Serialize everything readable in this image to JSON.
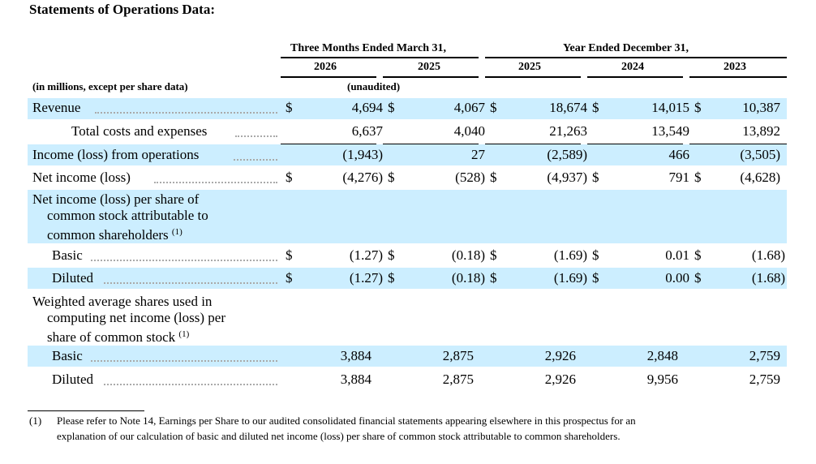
{
  "title": "Statements of Operations Data:",
  "header": {
    "group1": "Three Months Ended March 31,",
    "group2": "Year Ended December 31,",
    "years": [
      "2026",
      "2025",
      "2025",
      "2024",
      "2023"
    ],
    "units": "(in millions, except per share data)",
    "unaudited": "(unaudited)"
  },
  "currency": "$",
  "rows": [
    {
      "label": "Revenue",
      "values": [
        "4,694",
        "4,067",
        "18,674",
        "14,015",
        "10,387"
      ]
    },
    {
      "label": "Total costs and expenses",
      "values": [
        "6,637",
        "4,040",
        "21,263",
        "13,549",
        "13,892"
      ]
    },
    {
      "label": "Income (loss) from operations",
      "values": [
        "(1,943)",
        "27",
        "(2,589)",
        "466",
        "(3,505)"
      ]
    },
    {
      "label": "Net income (loss)",
      "values": [
        "(4,276)",
        "(528)",
        "(4,937)",
        "791",
        "(4,628)"
      ]
    },
    {
      "label_lines": [
        "Net income (loss) per share of",
        "common stock attributable to",
        "common shareholders"
      ],
      "note": "(1)"
    },
    {
      "label": "Basic",
      "values": [
        "(1.27)",
        "(0.18)",
        "(1.69)",
        "0.01",
        "(1.68)"
      ]
    },
    {
      "label": "Diluted",
      "values": [
        "(1.27)",
        "(0.18)",
        "(1.69)",
        "0.00",
        "(1.68)"
      ]
    },
    {
      "label_lines": [
        "Weighted average shares used in",
        "computing net income (loss) per",
        "share of common stock"
      ],
      "note": "(1)"
    },
    {
      "label": "Basic",
      "values": [
        "3,884",
        "2,875",
        "2,926",
        "2,848",
        "2,759"
      ]
    },
    {
      "label": "Diluted",
      "values": [
        "3,884",
        "2,875",
        "2,926",
        "9,956",
        "2,759"
      ]
    }
  ],
  "footnote": {
    "marker": "(1)",
    "line1": "Please refer to Note 14, Earnings per Share to our audited consolidated financial statements appearing elsewhere in this prospectus for an",
    "line2": "explanation of our calculation of basic and diluted net income (loss) per share of common stock attributable to common shareholders."
  }
}
